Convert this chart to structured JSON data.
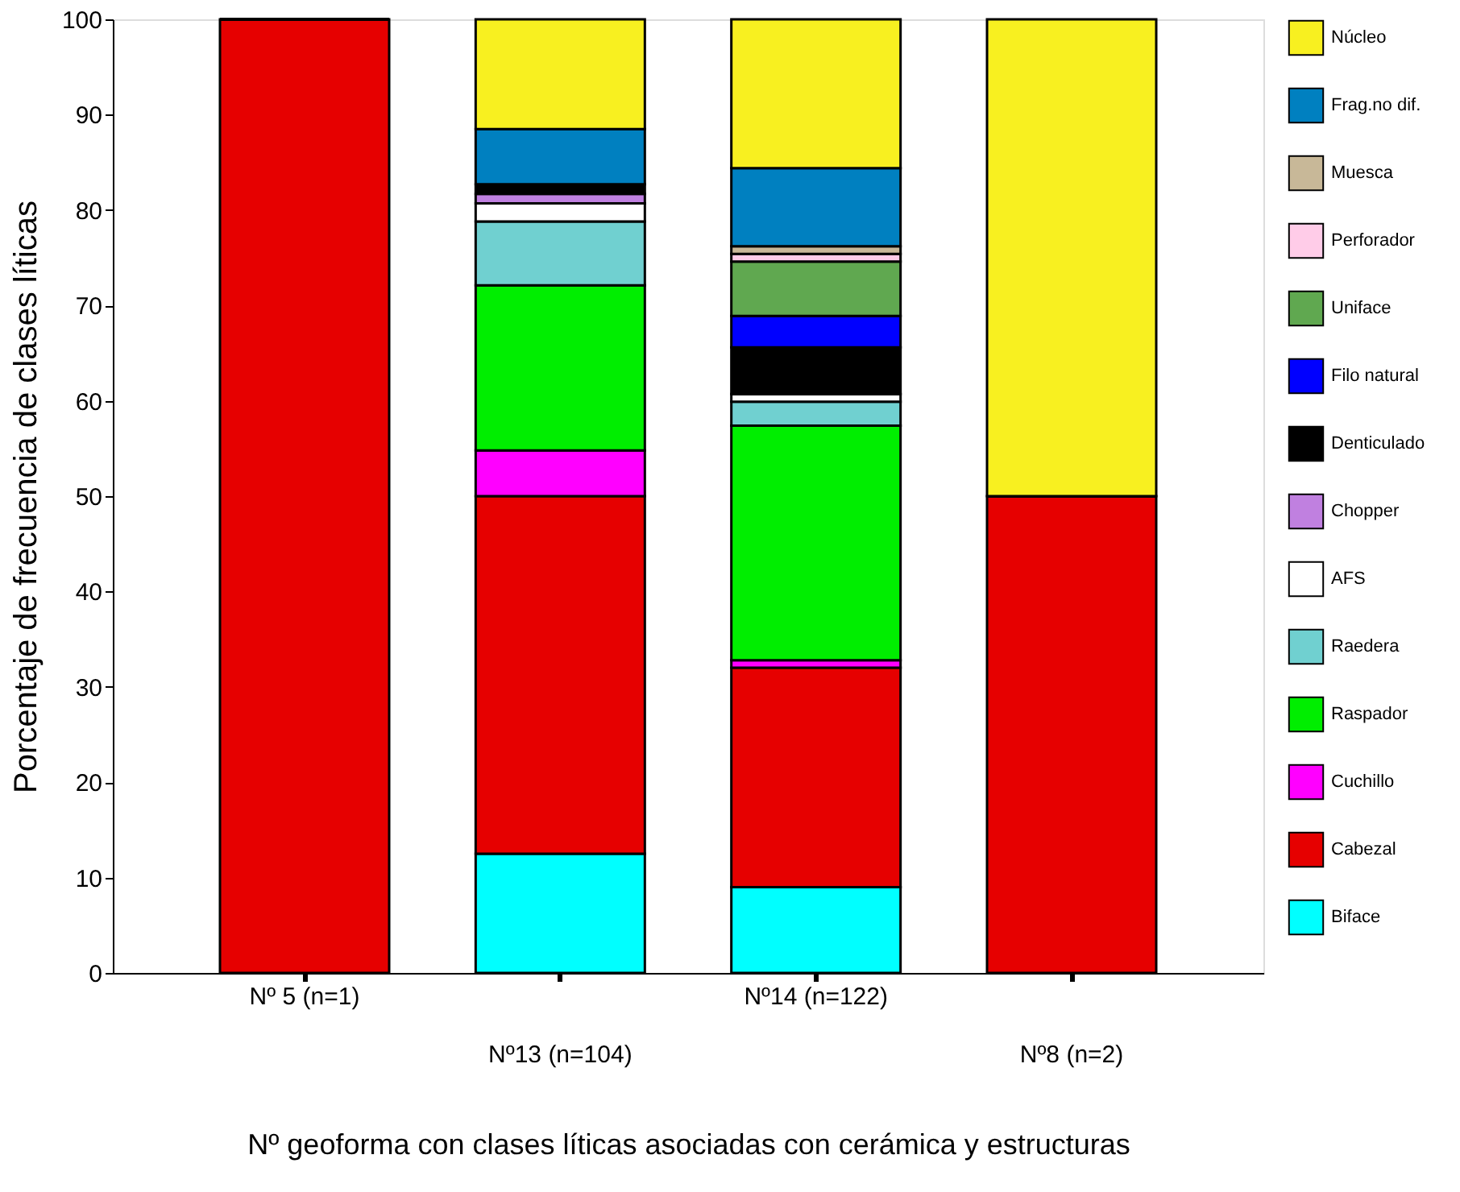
{
  "chart_data": {
    "type": "bar",
    "stacked": true,
    "categories": [
      "Nº 5 (n=1)",
      "Nº13 (n=104)",
      "Nº14 (n=122)",
      "Nº8 (n=2)"
    ],
    "xlabel": "Nº geoforma con clases líticas asociadas con cerámica y estructuras",
    "ylabel": "Porcentaje de frecuencia de clases líticas",
    "ylim": [
      0,
      100
    ],
    "yticks": [
      0,
      10,
      20,
      30,
      40,
      50,
      60,
      70,
      80,
      90,
      100
    ],
    "grid": false,
    "legend": "right",
    "series": [
      {
        "name": "Biface",
        "color": "#00ffff",
        "values": [
          0,
          12.5,
          9.0,
          0
        ]
      },
      {
        "name": "Cabezal",
        "color": "#e60000",
        "values": [
          100,
          37.5,
          23.0,
          50
        ]
      },
      {
        "name": "Cuchillo",
        "color": "#ff00ff",
        "values": [
          0,
          4.8,
          0.8,
          0
        ]
      },
      {
        "name": "Raspador",
        "color": "#00ee00",
        "values": [
          0,
          17.3,
          24.6,
          0
        ]
      },
      {
        "name": "Raedera",
        "color": "#70d0d0",
        "values": [
          0,
          6.7,
          2.5,
          0
        ]
      },
      {
        "name": "AFS",
        "color": "#ffffff",
        "values": [
          0,
          1.9,
          0.8,
          0
        ]
      },
      {
        "name": "Chopper",
        "color": "#c080e0",
        "values": [
          0,
          1.0,
          0,
          0
        ]
      },
      {
        "name": "Denticulado",
        "color": "#000000",
        "values": [
          0,
          1.0,
          4.9,
          0
        ]
      },
      {
        "name": "Filo natural",
        "color": "#0000ff",
        "values": [
          0,
          0,
          3.3,
          0
        ]
      },
      {
        "name": "Uniface",
        "color": "#60a850",
        "values": [
          0,
          0,
          5.7,
          0
        ]
      },
      {
        "name": "Perforador",
        "color": "#ffcce8",
        "values": [
          0,
          0,
          0.8,
          0
        ]
      },
      {
        "name": "Muesca",
        "color": "#c8b898",
        "values": [
          0,
          0,
          0.8,
          0
        ]
      },
      {
        "name": "Frag.no dif.",
        "color": "#0080c0",
        "values": [
          0,
          5.8,
          8.2,
          0
        ]
      },
      {
        "name": "Núcleo",
        "color": "#f8f020",
        "values": [
          0,
          11.5,
          15.6,
          50
        ]
      }
    ]
  }
}
